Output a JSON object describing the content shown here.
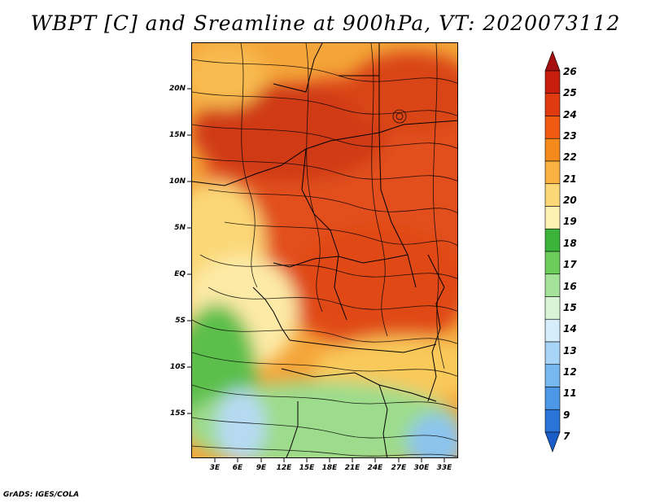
{
  "title": "WBPT [C] and Sreamline at 900hPa, VT: 2020073112",
  "footer": "GrADS: IGES/COLA",
  "lat_labels": [
    "20N",
    "15N",
    "10N",
    "5N",
    "EQ",
    "5S",
    "10S",
    "15S"
  ],
  "lon_labels": [
    "3E",
    "6E",
    "9E",
    "12E",
    "15E",
    "18E",
    "21E",
    "24E",
    "27E",
    "30E",
    "33E"
  ],
  "colorbar": {
    "labels": [
      "26",
      "25",
      "24",
      "23",
      "22",
      "21",
      "20",
      "19",
      "18",
      "17",
      "16",
      "15",
      "14",
      "13",
      "12",
      "11",
      "9",
      "7"
    ],
    "colors": [
      "#a50f0f",
      "#c81e0e",
      "#e03a10",
      "#f05a12",
      "#f58a1c",
      "#f9b242",
      "#fbd777",
      "#fdf0b0",
      "#3cb43c",
      "#6ccc5c",
      "#a6e39a",
      "#d8f5d8",
      "#d6eefb",
      "#a8d4f7",
      "#78b8f0",
      "#4c98e6",
      "#2a74d8",
      "#1a5cc8"
    ]
  }
}
